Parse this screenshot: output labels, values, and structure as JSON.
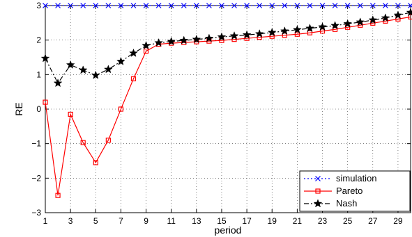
{
  "chart_data": {
    "type": "line",
    "title": "",
    "xlabel": "period",
    "ylabel": "RE",
    "xlim": [
      1,
      30
    ],
    "ylim": [
      -3,
      3
    ],
    "x_ticks": [
      "1",
      "3",
      "5",
      "7",
      "9",
      "11",
      "13",
      "15",
      "17",
      "19",
      "21",
      "23",
      "25",
      "27",
      "29"
    ],
    "y_ticks": [
      "−3",
      "−2",
      "−1",
      "0",
      "1",
      "2",
      "3"
    ],
    "grid": true,
    "legend_position": "bottom-right",
    "x": [
      1,
      2,
      3,
      4,
      5,
      6,
      7,
      8,
      9,
      10,
      11,
      12,
      13,
      14,
      15,
      16,
      17,
      18,
      19,
      20,
      21,
      22,
      23,
      24,
      25,
      26,
      27,
      28,
      29,
      30
    ],
    "series": [
      {
        "name": "simulation",
        "color": "#0000ff",
        "line_style": "dotted",
        "marker": "x",
        "values": [
          3,
          3,
          3,
          3,
          3,
          3,
          3,
          3,
          3,
          3,
          3,
          3,
          3,
          3,
          3,
          3,
          3,
          3,
          3,
          3,
          3,
          3,
          3,
          3,
          3,
          3,
          3,
          3,
          3,
          3
        ]
      },
      {
        "name": "Pareto",
        "color": "#ff0000",
        "line_style": "solid",
        "marker": "square",
        "values": [
          0.2,
          -2.5,
          -0.15,
          -0.97,
          -1.55,
          -0.9,
          0.0,
          0.88,
          1.68,
          1.88,
          1.91,
          1.93,
          1.95,
          1.97,
          1.99,
          2.02,
          2.05,
          2.08,
          2.11,
          2.14,
          2.17,
          2.21,
          2.26,
          2.31,
          2.37,
          2.43,
          2.49,
          2.55,
          2.61,
          2.67
        ]
      },
      {
        "name": "Nash",
        "color": "#000000",
        "line_style": "dashdot",
        "marker": "star",
        "values": [
          1.47,
          0.75,
          1.28,
          1.13,
          0.98,
          1.15,
          1.38,
          1.62,
          1.84,
          1.92,
          1.96,
          1.99,
          2.02,
          2.05,
          2.09,
          2.12,
          2.15,
          2.18,
          2.22,
          2.26,
          2.3,
          2.34,
          2.38,
          2.42,
          2.47,
          2.52,
          2.58,
          2.64,
          2.72,
          2.8
        ]
      }
    ]
  }
}
